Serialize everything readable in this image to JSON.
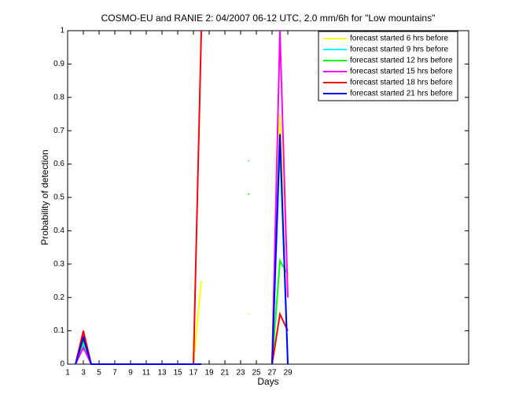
{
  "chart_data": {
    "type": "line",
    "title": "COSMO-EU and RANIE 2: 04/2007 06-12 UTC, 2.0 mm/6h for \"Low mountains\"",
    "x_label": "Days",
    "y_label": "Probability of detection",
    "x": [
      1,
      2,
      3,
      4,
      5,
      6,
      7,
      8,
      9,
      10,
      11,
      12,
      13,
      14,
      15,
      16,
      17,
      18,
      19,
      20,
      21,
      22,
      23,
      24,
      25,
      26,
      27,
      28,
      29
    ],
    "series": [
      {
        "name": "forecast started 6 hrs before",
        "color": "#ffff00",
        "values": [
          null,
          0,
          0.05,
          0,
          0,
          0,
          0,
          0,
          0,
          0,
          0,
          0,
          0,
          0,
          0,
          0,
          0,
          0.25,
          null,
          null,
          null,
          null,
          null,
          0.15,
          null,
          null,
          0,
          0.75,
          0.25
        ]
      },
      {
        "name": "forecast started 9 hrs before",
        "color": "#00ffff",
        "values": [
          null,
          0,
          0.06,
          0,
          0,
          0,
          0,
          0,
          0,
          0,
          0,
          0,
          0,
          0,
          0,
          0,
          0,
          0,
          null,
          null,
          null,
          null,
          null,
          0.61,
          null,
          null,
          0,
          0.65,
          0
        ]
      },
      {
        "name": "forecast started 12 hrs before",
        "color": "#00ff00",
        "values": [
          null,
          0,
          0.07,
          0,
          0,
          0,
          0,
          0,
          0,
          0,
          0,
          0,
          0,
          0,
          0,
          0,
          0,
          0,
          null,
          null,
          null,
          null,
          null,
          0.51,
          null,
          null,
          0,
          0.31,
          0.27
        ]
      },
      {
        "name": "forecast started 15 hrs before",
        "color": "#ff00ff",
        "values": [
          null,
          0,
          0.05,
          0,
          0,
          0,
          0,
          0,
          0,
          0,
          0,
          0,
          0,
          0,
          0,
          0,
          0,
          0,
          null,
          null,
          null,
          null,
          null,
          null,
          null,
          null,
          0,
          1,
          0.2
        ]
      },
      {
        "name": "forecast started 18 hrs before",
        "color": "#ff0000",
        "values": [
          null,
          0,
          0.1,
          0,
          0,
          0,
          0,
          0,
          0,
          0,
          0,
          0,
          0,
          0,
          0,
          0,
          0,
          1,
          null,
          null,
          null,
          null,
          null,
          null,
          null,
          null,
          0,
          0.15,
          0.1
        ]
      },
      {
        "name": "forecast started 21 hrs before",
        "color": "#0000ff",
        "values": [
          null,
          0,
          0.08,
          0,
          0,
          0,
          0,
          0,
          0,
          0,
          0,
          0,
          0,
          0,
          0,
          0,
          0,
          0,
          null,
          null,
          null,
          null,
          null,
          null,
          null,
          null,
          0,
          0.69,
          0
        ]
      }
    ],
    "xlim": [
      1,
      52
    ],
    "xticks": [
      1,
      3,
      5,
      7,
      9,
      11,
      13,
      15,
      17,
      19,
      21,
      23,
      25,
      27,
      29
    ],
    "ylim": [
      0,
      1
    ],
    "yticks": [
      0,
      0.1,
      0.2,
      0.3,
      0.4,
      0.5,
      0.6,
      0.7,
      0.8,
      0.9,
      1
    ],
    "legend": "upper right"
  }
}
